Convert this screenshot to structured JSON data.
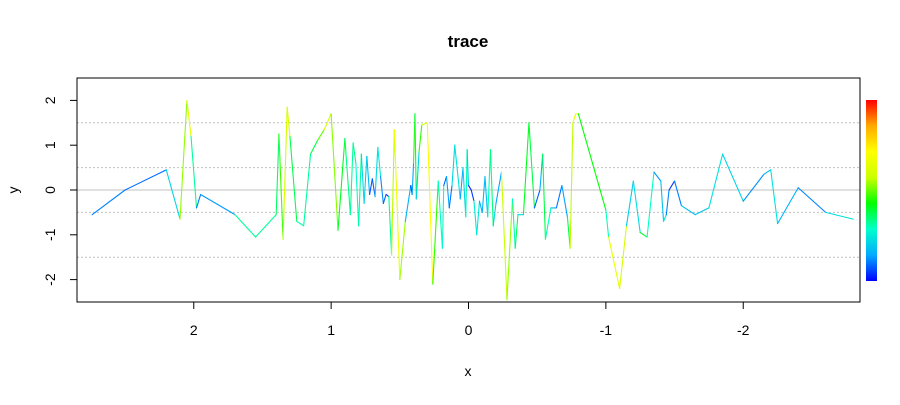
{
  "chart_data": {
    "type": "line",
    "title": "trace",
    "xlabel": "x",
    "ylabel": "y",
    "x_reversed": true,
    "xlim": [
      2.85,
      -2.85
    ],
    "ylim": [
      -2.5,
      2.5
    ],
    "x_ticks": [
      2,
      1,
      0,
      -1,
      -2
    ],
    "x_tick_labels": [
      "2",
      "1",
      "0",
      "-1",
      "-2"
    ],
    "y_ticks": [
      -2,
      -1,
      0,
      1,
      2
    ],
    "y_tick_labels": [
      "-2",
      "-1",
      "0",
      "1",
      "2"
    ],
    "reference_lines": {
      "solid": [
        0
      ],
      "dotted": [
        1.5,
        0.5,
        -0.5,
        -1.5
      ],
      "line_color": "#c0c0c0"
    },
    "color_scale": {
      "description": "segment color encodes |y| (rainbow, blue = low, red = high)",
      "colors": [
        "#0000ff",
        "#00aaff",
        "#00ffcc",
        "#00ff00",
        "#ccff00",
        "#ffff00",
        "#ffaa00",
        "#ff0000"
      ],
      "range": [
        0,
        2.5
      ],
      "legend_placement": "right"
    },
    "series": [
      {
        "x": [
          2.74,
          2.5,
          2.2,
          2.1,
          2.05,
          2.02,
          1.98,
          1.95,
          1.7,
          1.55,
          1.4,
          1.38,
          1.35,
          1.32,
          1.3,
          1.25,
          1.2,
          1.15,
          1.1,
          1.05,
          1.0,
          0.95,
          0.9,
          0.86,
          0.84,
          0.82,
          0.8,
          0.78,
          0.76,
          0.74,
          0.72,
          0.7,
          0.68,
          0.66,
          0.64,
          0.62,
          0.6,
          0.58,
          0.56,
          0.54,
          0.5,
          0.46,
          0.42,
          0.41,
          0.4,
          0.39,
          0.38,
          0.36,
          0.34,
          0.3,
          0.26,
          0.22,
          0.19,
          0.18,
          0.16,
          0.14,
          0.12,
          0.1,
          0.06,
          0.04,
          0.02,
          0.01,
          0.0,
          -0.02,
          -0.04,
          -0.06,
          -0.08,
          -0.1,
          -0.12,
          -0.14,
          -0.16,
          -0.18,
          -0.2,
          -0.24,
          -0.28,
          -0.32,
          -0.34,
          -0.36,
          -0.4,
          -0.44,
          -0.48,
          -0.52,
          -0.54,
          -0.56,
          -0.6,
          -0.64,
          -0.68,
          -0.72,
          -0.74,
          -0.76,
          -0.78,
          -0.8,
          -1.0,
          -1.02,
          -1.1,
          -1.15,
          -1.2,
          -1.25,
          -1.3,
          -1.35,
          -1.4,
          -1.42,
          -1.44,
          -1.46,
          -1.5,
          -1.55,
          -1.65,
          -1.75,
          -1.85,
          -2.0,
          -2.15,
          -2.2,
          -2.25,
          -2.4,
          -2.6,
          -2.8
        ],
        "y": [
          -0.55,
          0.0,
          0.45,
          -0.65,
          2.0,
          1.2,
          -0.4,
          -0.1,
          -0.55,
          -1.05,
          -0.55,
          1.25,
          -1.1,
          1.85,
          1.2,
          -0.7,
          -0.8,
          0.8,
          1.1,
          1.35,
          1.7,
          -0.9,
          1.15,
          -0.55,
          1.05,
          0.6,
          -0.8,
          0.8,
          -0.3,
          0.75,
          -0.1,
          0.25,
          -0.15,
          0.95,
          0.3,
          -0.3,
          -0.1,
          -0.15,
          -1.45,
          1.35,
          -2.0,
          -0.7,
          0.1,
          -0.1,
          0.6,
          1.7,
          -0.2,
          0.85,
          1.45,
          1.5,
          -2.1,
          0.2,
          -1.3,
          0.1,
          0.3,
          -0.4,
          0.1,
          1.0,
          -0.2,
          0.5,
          -0.6,
          0.9,
          0.1,
          0.0,
          -0.25,
          -1.0,
          -0.25,
          -0.5,
          0.3,
          -0.6,
          0.9,
          -0.8,
          -0.3,
          0.4,
          -2.45,
          -0.2,
          -1.3,
          -0.55,
          -0.55,
          1.5,
          -0.4,
          0.0,
          0.8,
          -1.1,
          -0.4,
          -0.4,
          0.1,
          -0.6,
          -1.3,
          1.5,
          1.7,
          1.7,
          -0.45,
          -1.05,
          -2.2,
          -0.8,
          0.2,
          -0.95,
          -1.05,
          0.4,
          0.2,
          -0.7,
          -0.55,
          0.0,
          0.2,
          -0.35,
          -0.55,
          -0.4,
          0.8,
          -0.25,
          0.35,
          0.45,
          -0.75,
          0.05,
          -0.5,
          -0.65
        ],
        "color_by": "abs_y"
      }
    ]
  }
}
